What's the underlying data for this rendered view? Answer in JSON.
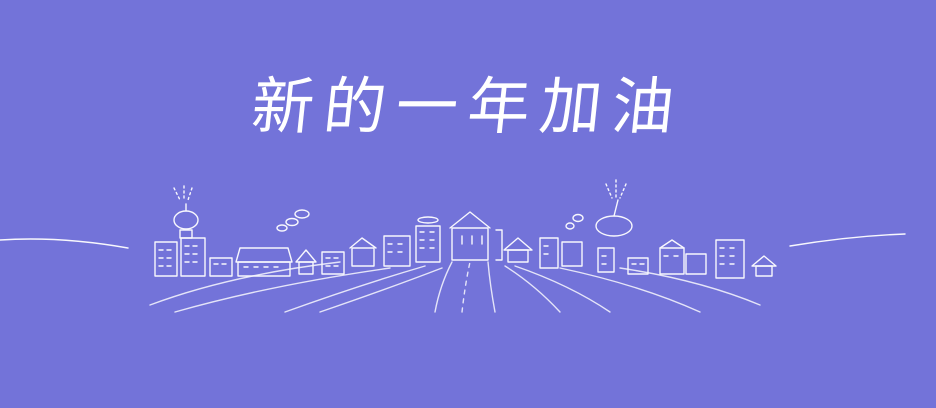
{
  "banner": {
    "headline": "新的一年加油",
    "background_color": "#7373d9",
    "line_color": "#ffffff"
  },
  "illustration": {
    "name": "doodle-town-skyline"
  }
}
